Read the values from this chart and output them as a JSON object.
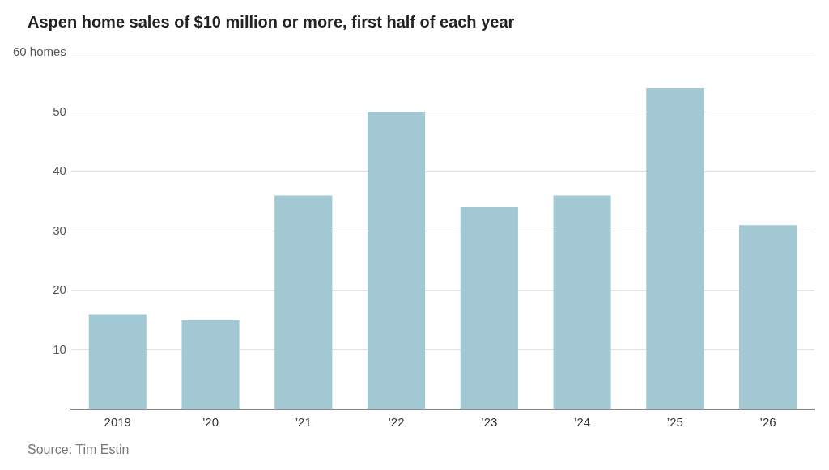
{
  "chart_data": {
    "type": "bar",
    "title": "Aspen home sales of $10 million or more, first half of each year",
    "categories": [
      "2019",
      "’20",
      "’21",
      "’22",
      "’23",
      "’24",
      "’25",
      "’26"
    ],
    "values": [
      16,
      15,
      36,
      50,
      34,
      36,
      54,
      31
    ],
    "color": "#a2c8d4",
    "ylim": [
      0,
      60
    ],
    "yticks": [
      {
        "value": 0,
        "label": null
      },
      10,
      20,
      30,
      40,
      50,
      {
        "value": 60,
        "label": "60 homes"
      }
    ],
    "grid": "y",
    "annotations": [
      "Source: Tim Estin"
    ]
  }
}
